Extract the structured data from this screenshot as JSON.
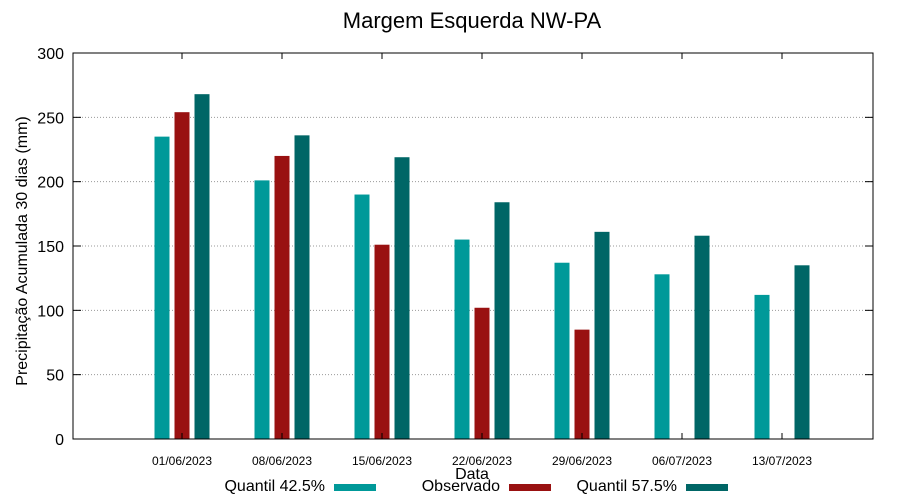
{
  "chart_data": {
    "type": "bar",
    "title": "Margem Esquerda NW-PA",
    "xlabel": "Data",
    "ylabel": "Precipitação Acumulada 30 dias (mm)",
    "ylim": [
      0,
      300
    ],
    "yticks": [
      0,
      50,
      100,
      150,
      200,
      250,
      300
    ],
    "grid": true,
    "legend_position": "bottom",
    "categories": [
      "01/06/2023",
      "08/06/2023",
      "15/06/2023",
      "22/06/2023",
      "29/06/2023",
      "06/07/2023",
      "13/07/2023"
    ],
    "series": [
      {
        "name": "Quantil 42.5%",
        "color": "#009999",
        "values": [
          235,
          201,
          190,
          155,
          137,
          128,
          112
        ]
      },
      {
        "name": "Observado",
        "color": "#991111",
        "values": [
          254,
          220,
          151,
          102,
          85,
          null,
          null
        ]
      },
      {
        "name": "Quantil 57.5%",
        "color": "#006666",
        "values": [
          268,
          236,
          219,
          184,
          161,
          158,
          135
        ]
      }
    ]
  }
}
